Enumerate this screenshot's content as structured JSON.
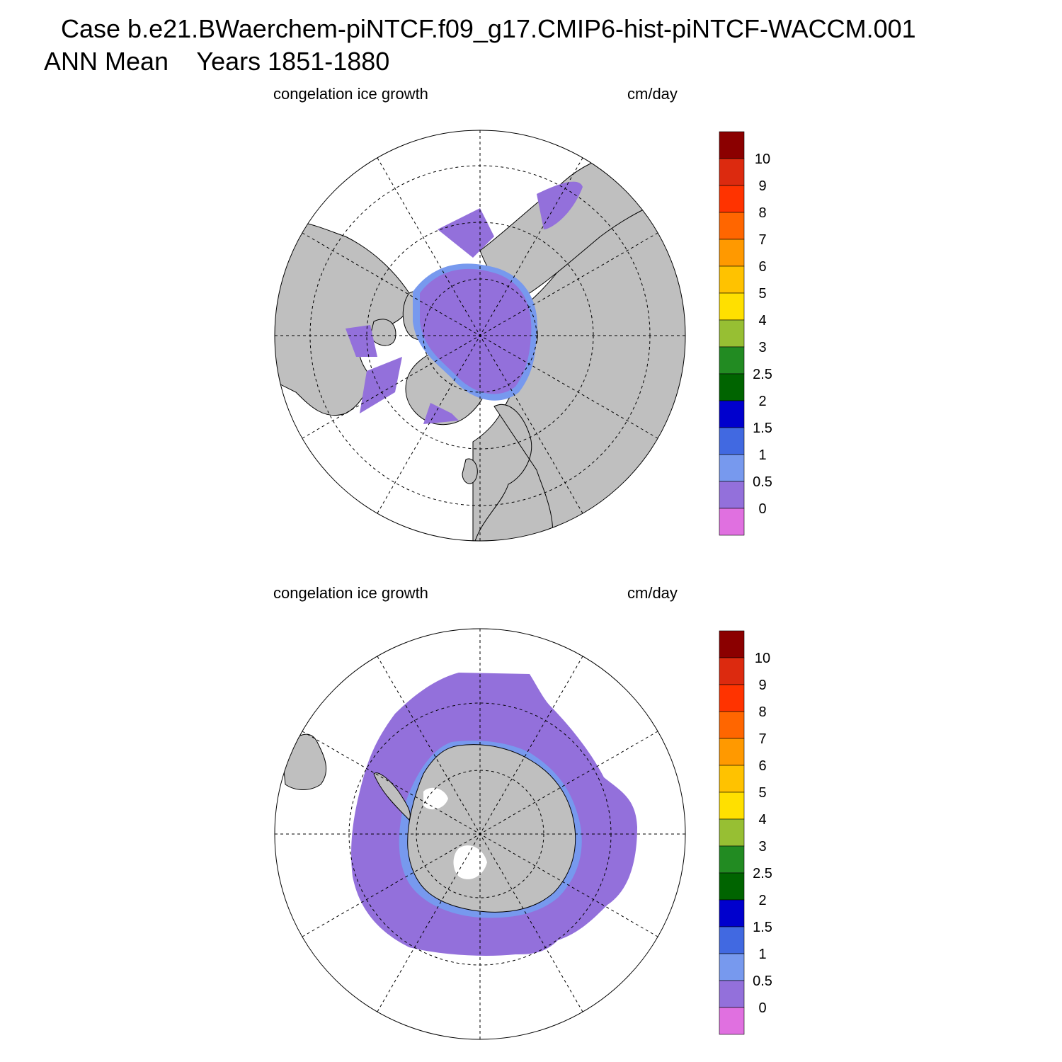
{
  "header": {
    "case_title": "Case b.e21.BWaerchem-piNTCF.f09_g17.CMIP6-hist-piNTCF-WACCM.001",
    "season": "ANN Mean",
    "years": "Years 1851-1880"
  },
  "panels": [
    {
      "hemisphere": "north",
      "left_label": "congelation ice growth",
      "right_label": "cm/day"
    },
    {
      "hemisphere": "south",
      "left_label": "congelation ice growth",
      "right_label": "cm/day"
    }
  ],
  "colorbar": {
    "labels": [
      "10",
      "9",
      "8",
      "7",
      "6",
      "5",
      "4",
      "3",
      "2.5",
      "2",
      "1.5",
      "1",
      "0.5",
      "0"
    ],
    "colors_top_to_bottom": [
      "#8b0000",
      "#dc2a0f",
      "#ff3300",
      "#ff6600",
      "#ff9900",
      "#ffc200",
      "#ffe000",
      "#97bf33",
      "#228b22",
      "#006400",
      "#0000cd",
      "#4169e1",
      "#7799ee",
      "#9370db",
      "#e070e0"
    ]
  },
  "colors": {
    "land": "#bfbfbf",
    "ice_main": "#9370db",
    "ice_edge": "#7799ee",
    "ice_fast": "#4169e1",
    "ocean": "#ffffff"
  }
}
